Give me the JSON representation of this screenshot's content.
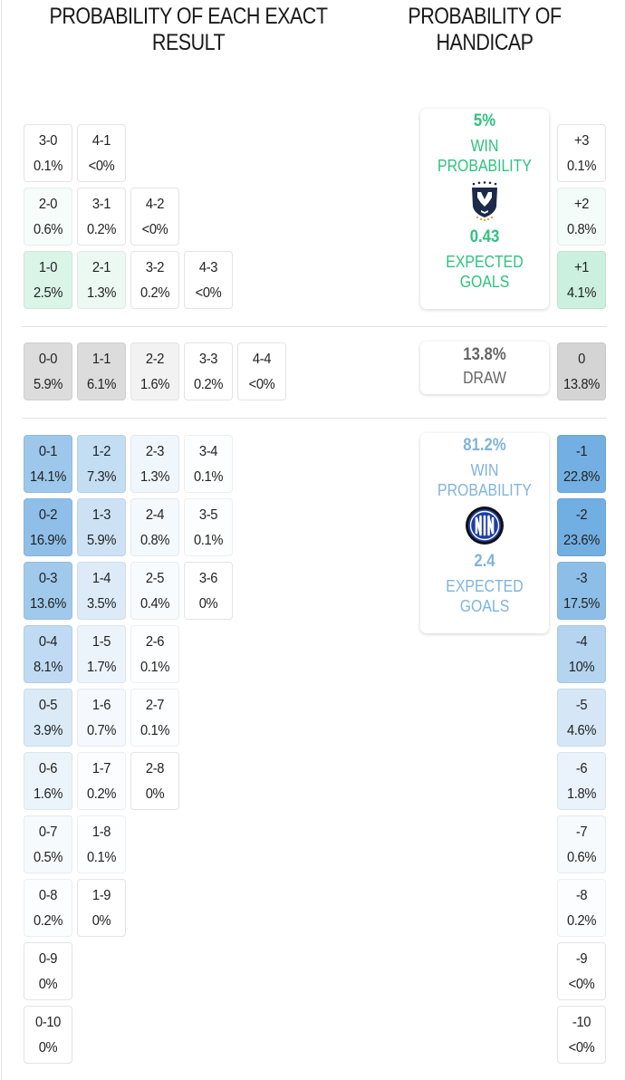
{
  "headings": {
    "exact_result": "PROBABILITY OF EACH EXACT RESULT",
    "handicap": "PROBABILITY OF HANDICAP"
  },
  "colors": {
    "home_accent": "#2ec27e",
    "away_accent": "#7fb4dc",
    "draw_text": "#666666"
  },
  "home": {
    "win_pct": "5%",
    "win_label_1": "WIN",
    "win_label_2": "PROBABILITY",
    "xg": "0.43",
    "xg_label_1": "EXPECTED",
    "xg_label_2": "GOALS",
    "logo": "monterrey-crest-icon"
  },
  "draw": {
    "pct": "13.8%",
    "label": "DRAW"
  },
  "away": {
    "win_pct": "81.2%",
    "win_label_1": "WIN",
    "win_label_2": "PROBABILITY",
    "xg": "2.4",
    "xg_label_1": "EXPECTED",
    "xg_label_2": "GOALS",
    "logo": "inter-milan-crest-icon"
  },
  "chart_data": {
    "type": "table",
    "title": "Probability of each exact result / Probability of handicap",
    "home_wins": [
      {
        "score": "3-0",
        "pct": "0.1%"
      },
      {
        "score": "4-1",
        "pct": "<0%"
      },
      {
        "score": "2-0",
        "pct": "0.6%"
      },
      {
        "score": "3-1",
        "pct": "0.2%"
      },
      {
        "score": "4-2",
        "pct": "<0%"
      },
      {
        "score": "1-0",
        "pct": "2.5%"
      },
      {
        "score": "2-1",
        "pct": "1.3%"
      },
      {
        "score": "3-2",
        "pct": "0.2%"
      },
      {
        "score": "4-3",
        "pct": "<0%"
      }
    ],
    "draws": [
      {
        "score": "0-0",
        "pct": "5.9%"
      },
      {
        "score": "1-1",
        "pct": "6.1%"
      },
      {
        "score": "2-2",
        "pct": "1.6%"
      },
      {
        "score": "3-3",
        "pct": "0.2%"
      },
      {
        "score": "4-4",
        "pct": "<0%"
      }
    ],
    "away_wins": [
      {
        "score": "0-1",
        "pct": "14.1%"
      },
      {
        "score": "1-2",
        "pct": "7.3%"
      },
      {
        "score": "2-3",
        "pct": "1.3%"
      },
      {
        "score": "3-4",
        "pct": "0.1%"
      },
      {
        "score": "0-2",
        "pct": "16.9%"
      },
      {
        "score": "1-3",
        "pct": "5.9%"
      },
      {
        "score": "2-4",
        "pct": "0.8%"
      },
      {
        "score": "3-5",
        "pct": "0.1%"
      },
      {
        "score": "0-3",
        "pct": "13.6%"
      },
      {
        "score": "1-4",
        "pct": "3.5%"
      },
      {
        "score": "2-5",
        "pct": "0.4%"
      },
      {
        "score": "3-6",
        "pct": "0%"
      },
      {
        "score": "0-4",
        "pct": "8.1%"
      },
      {
        "score": "1-5",
        "pct": "1.7%"
      },
      {
        "score": "2-6",
        "pct": "0.1%"
      },
      {
        "score": "0-5",
        "pct": "3.9%"
      },
      {
        "score": "1-6",
        "pct": "0.7%"
      },
      {
        "score": "2-7",
        "pct": "0.1%"
      },
      {
        "score": "0-6",
        "pct": "1.6%"
      },
      {
        "score": "1-7",
        "pct": "0.2%"
      },
      {
        "score": "2-8",
        "pct": "0%"
      },
      {
        "score": "0-7",
        "pct": "0.5%"
      },
      {
        "score": "1-8",
        "pct": "0.1%"
      },
      {
        "score": "0-8",
        "pct": "0.2%"
      },
      {
        "score": "1-9",
        "pct": "0%"
      },
      {
        "score": "0-9",
        "pct": "0%"
      },
      {
        "score": "0-10",
        "pct": "0%"
      }
    ],
    "handicap": [
      {
        "line": "+3",
        "pct": "0.1%"
      },
      {
        "line": "+2",
        "pct": "0.8%"
      },
      {
        "line": "+1",
        "pct": "4.1%"
      },
      {
        "line": "0",
        "pct": "13.8%"
      },
      {
        "line": "-1",
        "pct": "22.8%"
      },
      {
        "line": "-2",
        "pct": "23.6%"
      },
      {
        "line": "-3",
        "pct": "17.5%"
      },
      {
        "line": "-4",
        "pct": "10%"
      },
      {
        "line": "-5",
        "pct": "4.6%"
      },
      {
        "line": "-6",
        "pct": "1.8%"
      },
      {
        "line": "-7",
        "pct": "0.6%"
      },
      {
        "line": "-8",
        "pct": "0.2%"
      },
      {
        "line": "-9",
        "pct": "<0%"
      },
      {
        "line": "-10",
        "pct": "<0%"
      }
    ]
  }
}
